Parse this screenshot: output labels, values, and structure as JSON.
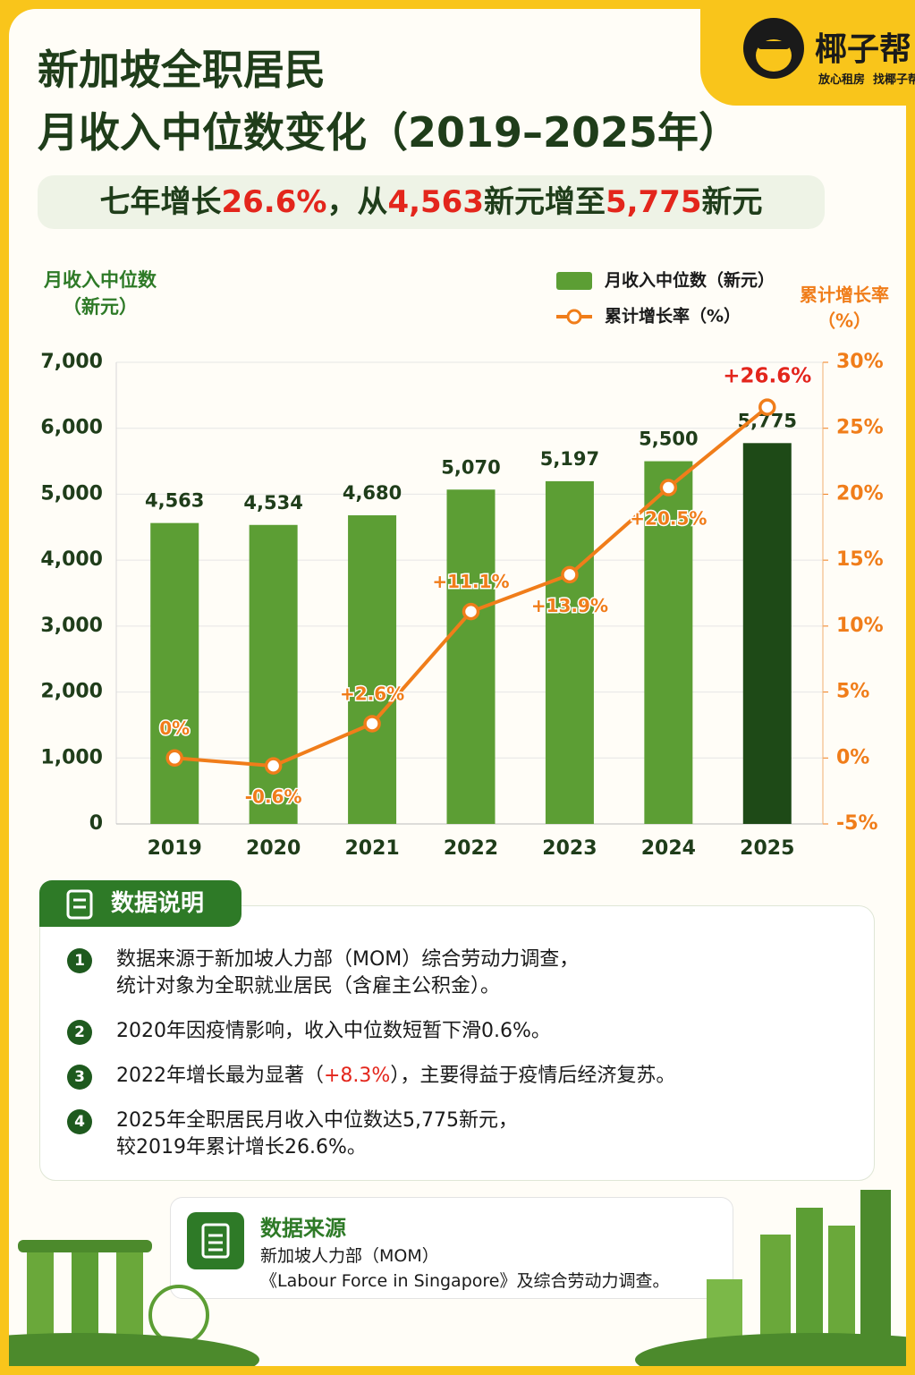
{
  "header": {
    "title": [
      "新加坡全职居民",
      "月收入中位数变化（2019–2025年）"
    ],
    "subtitle": [
      {
        "text": "七年增长",
        "color": "#1f3d1a"
      },
      {
        "text": "26.6%",
        "color": "#e3261c"
      },
      {
        "text": "，从",
        "color": "#1f3d1a"
      },
      {
        "text": "4,563",
        "color": "#e3261c"
      },
      {
        "text": "新元增至",
        "color": "#1f3d1a"
      },
      {
        "text": "5,775",
        "color": "#e3261c"
      },
      {
        "text": "新元",
        "color": "#1f3d1a"
      }
    ]
  },
  "logo": {
    "name": "椰子帮",
    "slogan": "放心租房  找椰子帮"
  },
  "chart_data": {
    "type": "bar-line",
    "y_label": [
      "月收入中位数",
      "（新元）"
    ],
    "y2_label": [
      "累计增长率",
      "（%）"
    ],
    "categories": [
      "2019",
      "2020",
      "2021",
      "2022",
      "2023",
      "2024",
      "2025"
    ],
    "series": [
      {
        "name": "月收入中位数（新元）",
        "type": "bar",
        "color": "#5c9e34",
        "colors": [
          "#5c9e34",
          "#5c9e34",
          "#5c9e34",
          "#5c9e34",
          "#5c9e34",
          "#5c9e34",
          "#1e4a17"
        ],
        "values": [
          4563,
          4534,
          4680,
          5070,
          5197,
          5500,
          5775
        ],
        "value_labels": [
          "4,563",
          "4,534",
          "4,680",
          "5,070",
          "5,197",
          "5,500",
          "5,775"
        ]
      },
      {
        "name": "累计增长率（%）",
        "type": "line",
        "axis": "y2",
        "color": "#f07d1a",
        "values": [
          0,
          -0.6,
          2.6,
          11.1,
          13.9,
          20.5,
          26.6
        ],
        "value_labels": [
          "0%",
          "-0.6%",
          "+2.6%",
          "+11.1%",
          "+13.9%",
          "+20.5%",
          "+26.6%"
        ]
      }
    ],
    "ylim": [
      0,
      7000
    ],
    "yticks": [
      0,
      {
        "value": 1000,
        "label": "1,000"
      },
      {
        "value": 2000,
        "label": "2,000"
      },
      {
        "value": 3000,
        "label": "3,000"
      },
      {
        "value": 4000,
        "label": "4,000"
      },
      {
        "value": 5000,
        "label": "5,000"
      },
      {
        "value": 6000,
        "label": "6,000"
      },
      {
        "value": 7000,
        "label": "7,000"
      }
    ],
    "y2lim": [
      -5,
      30
    ],
    "y2ticks": [
      {
        "value": -5,
        "label": "-5%"
      },
      {
        "value": 0,
        "label": "0%"
      },
      {
        "value": 5,
        "label": "5%"
      },
      {
        "value": 10,
        "label": "10%"
      },
      {
        "value": 15,
        "label": "15%"
      },
      {
        "value": 20,
        "label": "20%"
      },
      {
        "value": 25,
        "label": "25%"
      },
      {
        "value": 30,
        "label": "30%"
      }
    ],
    "grid": true,
    "legend": "top-right"
  },
  "notes": {
    "title": "数据说明",
    "items": [
      {
        "num": "1",
        "lines": [
          [
            {
              "text": "数据来源于新加坡人力部（MOM）综合劳动力调查，"
            }
          ],
          [
            {
              "text": "统计对象为全职就业居民（含雇主公积金）。"
            }
          ]
        ]
      },
      {
        "num": "2",
        "lines": [
          [
            {
              "text": "2020年因疫情影响，收入中位数短暂下滑0.6%。"
            }
          ]
        ]
      },
      {
        "num": "3",
        "lines": [
          [
            {
              "text": "2022年增长最为显著（"
            },
            {
              "text": "+8.3%",
              "color": "#e3261c"
            },
            {
              "text": "），主要得益于疫情后经济复苏。"
            }
          ]
        ]
      },
      {
        "num": "4",
        "lines": [
          [
            {
              "text": "2025年全职居民月收入中位数达5,775新元，"
            }
          ],
          [
            {
              "text": "较2019年累计增长26.6%。"
            }
          ]
        ]
      }
    ]
  },
  "source": {
    "title": "数据来源",
    "lines": [
      "新加坡人力部（MOM）",
      "《Labour Force in Singapore》及综合劳动力调查。"
    ]
  }
}
